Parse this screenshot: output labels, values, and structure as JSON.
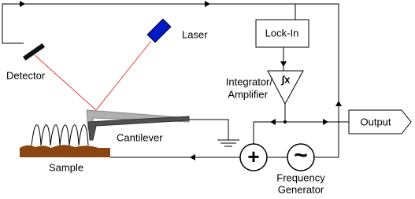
{
  "labels": {
    "laser": "Laser",
    "detector": "Detector",
    "lock_in": "Lock-In",
    "integrator": "Integrator/",
    "amplifier": "Amplifier",
    "integral": "∫x",
    "output": "Output",
    "cantilever": "Cantilever",
    "sample": "Sample",
    "sum": "+",
    "wave": "~",
    "frequency": "Frequency",
    "generator": "Generator"
  }
}
